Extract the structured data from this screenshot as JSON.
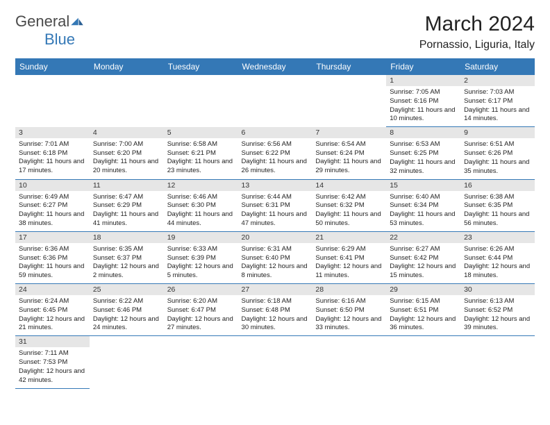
{
  "header": {
    "logo_gen": "General",
    "logo_blue": "Blue",
    "month": "March 2024",
    "location": "Pornassio, Liguria, Italy"
  },
  "days": [
    "Sunday",
    "Monday",
    "Tuesday",
    "Wednesday",
    "Thursday",
    "Friday",
    "Saturday"
  ],
  "sunrise_label": "Sunrise: ",
  "sunset_label": "Sunset: ",
  "daylight_label": "Daylight: ",
  "daylight_suffix": ".",
  "cells": [
    [
      null,
      null,
      null,
      null,
      null,
      {
        "n": "1",
        "sunrise": "7:05 AM",
        "sunset": "6:16 PM",
        "daylight": "11 hours and 10 minutes"
      },
      {
        "n": "2",
        "sunrise": "7:03 AM",
        "sunset": "6:17 PM",
        "daylight": "11 hours and 14 minutes"
      }
    ],
    [
      {
        "n": "3",
        "sunrise": "7:01 AM",
        "sunset": "6:18 PM",
        "daylight": "11 hours and 17 minutes"
      },
      {
        "n": "4",
        "sunrise": "7:00 AM",
        "sunset": "6:20 PM",
        "daylight": "11 hours and 20 minutes"
      },
      {
        "n": "5",
        "sunrise": "6:58 AM",
        "sunset": "6:21 PM",
        "daylight": "11 hours and 23 minutes"
      },
      {
        "n": "6",
        "sunrise": "6:56 AM",
        "sunset": "6:22 PM",
        "daylight": "11 hours and 26 minutes"
      },
      {
        "n": "7",
        "sunrise": "6:54 AM",
        "sunset": "6:24 PM",
        "daylight": "11 hours and 29 minutes"
      },
      {
        "n": "8",
        "sunrise": "6:53 AM",
        "sunset": "6:25 PM",
        "daylight": "11 hours and 32 minutes"
      },
      {
        "n": "9",
        "sunrise": "6:51 AM",
        "sunset": "6:26 PM",
        "daylight": "11 hours and 35 minutes"
      }
    ],
    [
      {
        "n": "10",
        "sunrise": "6:49 AM",
        "sunset": "6:27 PM",
        "daylight": "11 hours and 38 minutes"
      },
      {
        "n": "11",
        "sunrise": "6:47 AM",
        "sunset": "6:29 PM",
        "daylight": "11 hours and 41 minutes"
      },
      {
        "n": "12",
        "sunrise": "6:46 AM",
        "sunset": "6:30 PM",
        "daylight": "11 hours and 44 minutes"
      },
      {
        "n": "13",
        "sunrise": "6:44 AM",
        "sunset": "6:31 PM",
        "daylight": "11 hours and 47 minutes"
      },
      {
        "n": "14",
        "sunrise": "6:42 AM",
        "sunset": "6:32 PM",
        "daylight": "11 hours and 50 minutes"
      },
      {
        "n": "15",
        "sunrise": "6:40 AM",
        "sunset": "6:34 PM",
        "daylight": "11 hours and 53 minutes"
      },
      {
        "n": "16",
        "sunrise": "6:38 AM",
        "sunset": "6:35 PM",
        "daylight": "11 hours and 56 minutes"
      }
    ],
    [
      {
        "n": "17",
        "sunrise": "6:36 AM",
        "sunset": "6:36 PM",
        "daylight": "11 hours and 59 minutes"
      },
      {
        "n": "18",
        "sunrise": "6:35 AM",
        "sunset": "6:37 PM",
        "daylight": "12 hours and 2 minutes"
      },
      {
        "n": "19",
        "sunrise": "6:33 AM",
        "sunset": "6:39 PM",
        "daylight": "12 hours and 5 minutes"
      },
      {
        "n": "20",
        "sunrise": "6:31 AM",
        "sunset": "6:40 PM",
        "daylight": "12 hours and 8 minutes"
      },
      {
        "n": "21",
        "sunrise": "6:29 AM",
        "sunset": "6:41 PM",
        "daylight": "12 hours and 11 minutes"
      },
      {
        "n": "22",
        "sunrise": "6:27 AM",
        "sunset": "6:42 PM",
        "daylight": "12 hours and 15 minutes"
      },
      {
        "n": "23",
        "sunrise": "6:26 AM",
        "sunset": "6:44 PM",
        "daylight": "12 hours and 18 minutes"
      }
    ],
    [
      {
        "n": "24",
        "sunrise": "6:24 AM",
        "sunset": "6:45 PM",
        "daylight": "12 hours and 21 minutes"
      },
      {
        "n": "25",
        "sunrise": "6:22 AM",
        "sunset": "6:46 PM",
        "daylight": "12 hours and 24 minutes"
      },
      {
        "n": "26",
        "sunrise": "6:20 AM",
        "sunset": "6:47 PM",
        "daylight": "12 hours and 27 minutes"
      },
      {
        "n": "27",
        "sunrise": "6:18 AM",
        "sunset": "6:48 PM",
        "daylight": "12 hours and 30 minutes"
      },
      {
        "n": "28",
        "sunrise": "6:16 AM",
        "sunset": "6:50 PM",
        "daylight": "12 hours and 33 minutes"
      },
      {
        "n": "29",
        "sunrise": "6:15 AM",
        "sunset": "6:51 PM",
        "daylight": "12 hours and 36 minutes"
      },
      {
        "n": "30",
        "sunrise": "6:13 AM",
        "sunset": "6:52 PM",
        "daylight": "12 hours and 39 minutes"
      }
    ],
    [
      {
        "n": "31",
        "sunrise": "7:11 AM",
        "sunset": "7:53 PM",
        "daylight": "12 hours and 42 minutes"
      },
      null,
      null,
      null,
      null,
      null,
      null
    ]
  ]
}
